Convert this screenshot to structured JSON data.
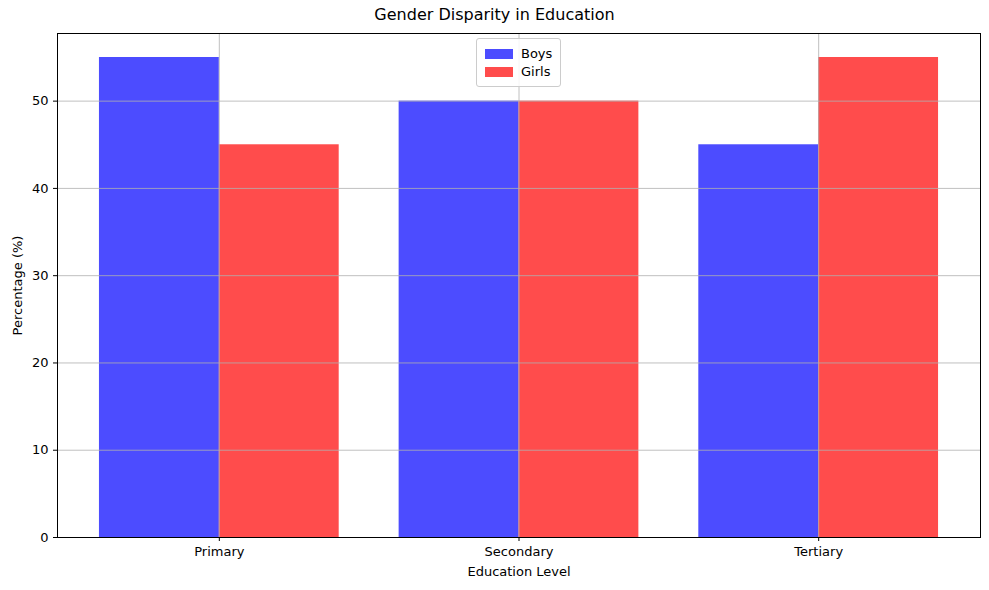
{
  "chart_data": {
    "type": "bar",
    "title": "Gender Disparity in Education",
    "xlabel": "Education Level",
    "ylabel": "Percentage (%)",
    "categories": [
      "Primary",
      "Secondary",
      "Tertiary"
    ],
    "series": [
      {
        "name": "Boys",
        "color": "#0000ff",
        "values": [
          55,
          50,
          45
        ]
      },
      {
        "name": "Girls",
        "color": "#ff0000",
        "values": [
          45,
          50,
          55
        ]
      }
    ],
    "ylim": [
      0,
      57.75
    ],
    "yticks": [
      0,
      10,
      20,
      30,
      40,
      50
    ],
    "grid": true,
    "legend": "upper center"
  }
}
